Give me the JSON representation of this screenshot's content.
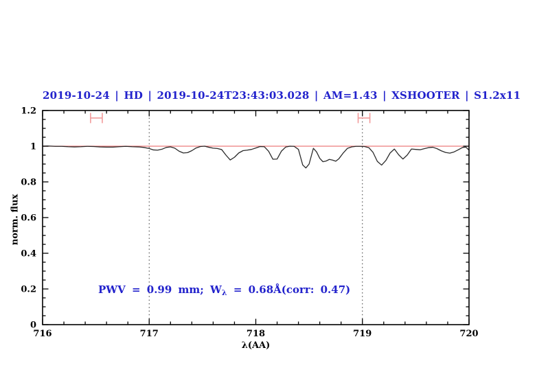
{
  "title": "2019-10-24 | HD | 2019-10-24T23:43:03.028 | AM=1.43 | XSHOOTER | S1.2x11",
  "annotation": {
    "part1": "PWV = 0.99 mm; W",
    "sub": "λ",
    "part2": " = 0.68Å(corr: 0.47)"
  },
  "colors": {
    "header_blue": "#2222cc",
    "continuum_red": "#ec7a7a",
    "marker_red": "#f29b9b",
    "spectrum_black": "#2b2b2b",
    "frame_black": "#000000",
    "vline_gray": "#333333"
  },
  "chart_data": {
    "type": "line",
    "title": "2019-10-24 | HD | 2019-10-24T23:43:03.028 | AM=1.43 | XSHOOTER | S1.2x11",
    "xlabel": "λ(AA)",
    "ylabel": "norm. flux",
    "xlim": [
      716,
      720
    ],
    "ylim": [
      0,
      1.2
    ],
    "grid": false,
    "x_major_ticks": [
      716,
      717,
      718,
      719,
      720
    ],
    "x_tick_labels": [
      "716",
      "717",
      "718",
      "719",
      "720"
    ],
    "x_minor_step": 0.2,
    "y_major_ticks": [
      0,
      0.2,
      0.4,
      0.6,
      0.8,
      1,
      1.2
    ],
    "y_tick_labels": [
      "0",
      "0.2",
      "0.4",
      "0.6",
      "0.8",
      "1",
      "1.2"
    ],
    "y_minor_step": 0.05,
    "continuum_line_y": 1.0,
    "dotted_vlines": [
      717,
      719
    ],
    "range_markers": [
      {
        "x1": 716.45,
        "x2": 716.56,
        "y": 1.158
      },
      {
        "x1": 718.96,
        "x2": 719.07,
        "y": 1.158
      }
    ],
    "series": [
      {
        "name": "normalized spectrum",
        "points": [
          [
            716.0,
            1.0
          ],
          [
            716.06,
            1.001
          ],
          [
            716.12,
            0.999
          ],
          [
            716.18,
            0.999
          ],
          [
            716.24,
            0.997
          ],
          [
            716.3,
            0.996
          ],
          [
            716.36,
            0.997
          ],
          [
            716.42,
            0.999
          ],
          [
            716.48,
            0.998
          ],
          [
            716.54,
            0.996
          ],
          [
            716.6,
            0.995
          ],
          [
            716.66,
            0.995
          ],
          [
            716.72,
            0.997
          ],
          [
            716.78,
            0.999
          ],
          [
            716.84,
            0.997
          ],
          [
            716.9,
            0.996
          ],
          [
            716.95,
            0.993
          ],
          [
            717.0,
            0.987
          ],
          [
            717.04,
            0.979
          ],
          [
            717.08,
            0.978
          ],
          [
            717.12,
            0.983
          ],
          [
            717.16,
            0.993
          ],
          [
            717.2,
            0.996
          ],
          [
            717.24,
            0.989
          ],
          [
            717.28,
            0.972
          ],
          [
            717.32,
            0.962
          ],
          [
            717.36,
            0.964
          ],
          [
            717.4,
            0.975
          ],
          [
            717.44,
            0.99
          ],
          [
            717.48,
            0.998
          ],
          [
            717.52,
            1.0
          ],
          [
            717.56,
            0.994
          ],
          [
            717.6,
            0.989
          ],
          [
            717.64,
            0.987
          ],
          [
            717.68,
            0.981
          ],
          [
            717.72,
            0.95
          ],
          [
            717.76,
            0.923
          ],
          [
            717.8,
            0.938
          ],
          [
            717.84,
            0.962
          ],
          [
            717.88,
            0.975
          ],
          [
            717.92,
            0.978
          ],
          [
            717.96,
            0.982
          ],
          [
            718.0,
            0.99
          ],
          [
            718.04,
            0.998
          ],
          [
            718.08,
            0.997
          ],
          [
            718.12,
            0.972
          ],
          [
            718.16,
            0.927
          ],
          [
            718.2,
            0.928
          ],
          [
            718.24,
            0.972
          ],
          [
            718.28,
            0.995
          ],
          [
            718.32,
            1.0
          ],
          [
            718.36,
            0.999
          ],
          [
            718.4,
            0.982
          ],
          [
            718.44,
            0.895
          ],
          [
            718.47,
            0.878
          ],
          [
            718.5,
            0.9
          ],
          [
            718.54,
            0.988
          ],
          [
            718.57,
            0.968
          ],
          [
            718.6,
            0.932
          ],
          [
            718.63,
            0.913
          ],
          [
            718.66,
            0.917
          ],
          [
            718.69,
            0.926
          ],
          [
            718.72,
            0.922
          ],
          [
            718.75,
            0.916
          ],
          [
            718.78,
            0.93
          ],
          [
            718.82,
            0.962
          ],
          [
            718.86,
            0.988
          ],
          [
            718.9,
            0.996
          ],
          [
            718.94,
            0.999
          ],
          [
            718.98,
            0.999
          ],
          [
            719.02,
            0.998
          ],
          [
            719.06,
            0.992
          ],
          [
            719.1,
            0.965
          ],
          [
            719.14,
            0.915
          ],
          [
            719.18,
            0.894
          ],
          [
            719.22,
            0.92
          ],
          [
            719.26,
            0.962
          ],
          [
            719.3,
            0.984
          ],
          [
            719.34,
            0.952
          ],
          [
            719.38,
            0.928
          ],
          [
            719.42,
            0.95
          ],
          [
            719.46,
            0.984
          ],
          [
            719.5,
            0.982
          ],
          [
            719.54,
            0.98
          ],
          [
            719.58,
            0.986
          ],
          [
            719.62,
            0.992
          ],
          [
            719.66,
            0.994
          ],
          [
            719.7,
            0.986
          ],
          [
            719.74,
            0.974
          ],
          [
            719.78,
            0.965
          ],
          [
            719.82,
            0.961
          ],
          [
            719.86,
            0.968
          ],
          [
            719.9,
            0.98
          ],
          [
            719.94,
            0.993
          ],
          [
            719.97,
            0.995
          ],
          [
            720.0,
            0.978
          ]
        ]
      }
    ],
    "legend": null
  }
}
